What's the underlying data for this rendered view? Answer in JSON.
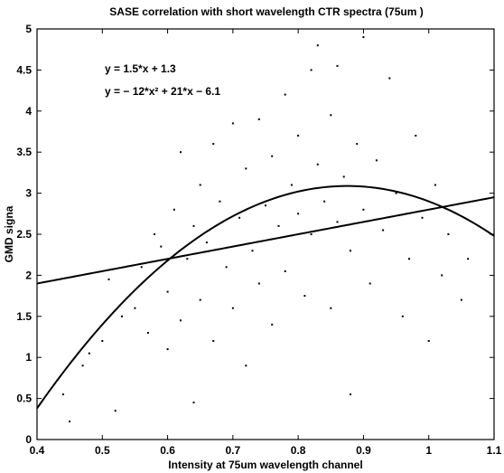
{
  "chart_data": {
    "type": "scatter",
    "title": "SASE correlation with short wavelength CTR spectra (75um )",
    "xlabel": "Intensity at 75um wavelength channel",
    "ylabel": "GMD signa",
    "xlim": [
      0.4,
      1.1
    ],
    "ylim": [
      0,
      5
    ],
    "xticks": [
      0.4,
      0.5,
      0.6,
      0.7,
      0.8,
      0.9,
      1,
      1.1
    ],
    "xtick_labels": [
      "0.4",
      "0.5",
      "0.6",
      "0.7",
      "0.8",
      "0.9",
      "1",
      "1.1"
    ],
    "yticks": [
      0,
      0.5,
      1,
      1.5,
      2,
      2.5,
      3,
      3.5,
      4,
      4.5,
      5
    ],
    "ytick_labels": [
      "0",
      "0.5",
      "1",
      "1.5",
      "2",
      "2.5",
      "3",
      "3.5",
      "4",
      "4.5",
      "5"
    ],
    "grid": false,
    "annotations": [
      "y = 1.5*x + 1.3",
      "y = − 12*x² + 21*x − 6.1"
    ],
    "fits": [
      {
        "kind": "linear",
        "coefficients": [
          1.5,
          1.3
        ]
      },
      {
        "kind": "quadratic",
        "coefficients": [
          -12,
          21,
          -6.1
        ]
      }
    ],
    "series": [
      {
        "marker": "dot",
        "color": "#000000",
        "points": [
          [
            0.44,
            0.55
          ],
          [
            0.45,
            0.22
          ],
          [
            0.47,
            0.9
          ],
          [
            0.48,
            1.05
          ],
          [
            0.5,
            1.2
          ],
          [
            0.51,
            1.95
          ],
          [
            0.52,
            0.35
          ],
          [
            0.53,
            1.5
          ],
          [
            0.55,
            1.6
          ],
          [
            0.56,
            2.1
          ],
          [
            0.57,
            1.3
          ],
          [
            0.58,
            2.5
          ],
          [
            0.59,
            2.35
          ],
          [
            0.6,
            1.1
          ],
          [
            0.6,
            1.8
          ],
          [
            0.61,
            2.8
          ],
          [
            0.62,
            1.45
          ],
          [
            0.62,
            3.5
          ],
          [
            0.63,
            2.2
          ],
          [
            0.64,
            0.45
          ],
          [
            0.64,
            2.6
          ],
          [
            0.65,
            1.7
          ],
          [
            0.65,
            3.1
          ],
          [
            0.66,
            2.4
          ],
          [
            0.67,
            3.6
          ],
          [
            0.67,
            1.2
          ],
          [
            0.68,
            2.9
          ],
          [
            0.69,
            2.1
          ],
          [
            0.7,
            3.85
          ],
          [
            0.7,
            1.6
          ],
          [
            0.71,
            2.7
          ],
          [
            0.72,
            3.3
          ],
          [
            0.72,
            0.9
          ],
          [
            0.73,
            2.3
          ],
          [
            0.74,
            3.9
          ],
          [
            0.74,
            1.9
          ],
          [
            0.75,
            2.85
          ],
          [
            0.76,
            3.45
          ],
          [
            0.76,
            1.4
          ],
          [
            0.77,
            2.6
          ],
          [
            0.78,
            4.2
          ],
          [
            0.78,
            2.05
          ],
          [
            0.79,
            3.1
          ],
          [
            0.8,
            2.75
          ],
          [
            0.8,
            3.7
          ],
          [
            0.81,
            1.75
          ],
          [
            0.82,
            4.5
          ],
          [
            0.82,
            2.5
          ],
          [
            0.83,
            3.35
          ],
          [
            0.83,
            4.8
          ],
          [
            0.84,
            2.9
          ],
          [
            0.85,
            3.95
          ],
          [
            0.85,
            1.6
          ],
          [
            0.86,
            2.65
          ],
          [
            0.86,
            4.55
          ],
          [
            0.87,
            3.2
          ],
          [
            0.88,
            2.3
          ],
          [
            0.88,
            0.55
          ],
          [
            0.89,
            3.6
          ],
          [
            0.9,
            4.9
          ],
          [
            0.9,
            2.8
          ],
          [
            0.91,
            1.9
          ],
          [
            0.92,
            3.4
          ],
          [
            0.93,
            2.55
          ],
          [
            0.94,
            4.4
          ],
          [
            0.95,
            3.0
          ],
          [
            0.96,
            1.5
          ],
          [
            0.97,
            2.2
          ],
          [
            0.98,
            3.7
          ],
          [
            0.99,
            2.7
          ],
          [
            1.0,
            1.2
          ],
          [
            1.01,
            3.1
          ],
          [
            1.02,
            2.0
          ],
          [
            1.03,
            2.5
          ],
          [
            1.05,
            1.7
          ],
          [
            1.06,
            2.2
          ]
        ]
      }
    ]
  }
}
